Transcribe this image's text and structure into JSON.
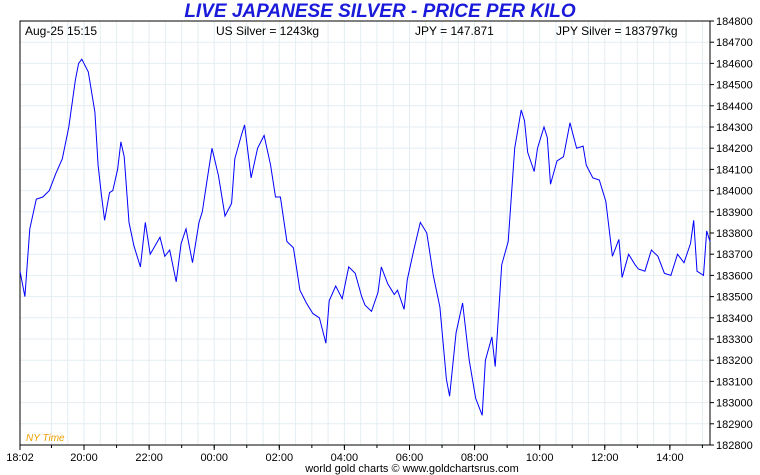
{
  "title": "LIVE JAPANESE SILVER - PRICE PER KILO",
  "header": {
    "timestamp": "Aug-25  15:15",
    "us_silver": "US Silver = 1243kg",
    "jpy_rate": "JPY = 147.871",
    "jpy_silver": "JPY Silver = 183797kg"
  },
  "timezone_label": "NY Time",
  "footer": "world gold charts © www.goldchartsrus.com",
  "colors": {
    "line": "#0000ff",
    "title": "#1a1adb",
    "grid": "#e4eef2",
    "timezone": "#f0a000"
  },
  "chart_data": {
    "type": "line",
    "title": "LIVE JAPANESE SILVER - PRICE PER KILO",
    "xlabel": "",
    "ylabel": "",
    "x_ticks": [
      "18:02",
      "20:00",
      "22:00",
      "00:00",
      "02:00",
      "04:00",
      "06:00",
      "08:00",
      "10:00",
      "12:00",
      "14:00"
    ],
    "x_tick_hours": [
      0,
      1.967,
      3.967,
      5.967,
      7.967,
      9.967,
      11.967,
      13.967,
      15.967,
      17.967,
      19.967
    ],
    "x_range_hours": [
      0,
      21.2
    ],
    "ylim": [
      182800,
      184800
    ],
    "y_ticks": [
      182800,
      182900,
      183000,
      183100,
      183200,
      183300,
      183400,
      183500,
      183600,
      183700,
      183800,
      183900,
      184000,
      184100,
      184200,
      184300,
      184400,
      184500,
      184600,
      184700,
      184800
    ],
    "grid": true,
    "series": [
      {
        "x_hours": [
          0,
          0.15,
          0.3,
          0.5,
          0.7,
          0.9,
          1.1,
          1.3,
          1.5,
          1.7,
          1.8,
          1.9,
          2.1,
          2.3,
          2.4,
          2.5,
          2.6,
          2.75,
          2.85,
          3.0,
          3.1,
          3.2,
          3.35,
          3.5,
          3.7,
          3.85,
          4.0,
          4.15,
          4.3,
          4.45,
          4.6,
          4.8,
          4.95,
          5.1,
          5.3,
          5.5,
          5.6,
          5.75,
          5.9,
          6.1,
          6.3,
          6.5,
          6.6,
          6.8,
          6.9,
          7.1,
          7.3,
          7.5,
          7.7,
          7.85,
          8.0,
          8.2,
          8.4,
          8.5,
          8.6,
          8.8,
          9.0,
          9.2,
          9.4,
          9.5,
          9.7,
          9.9,
          10.1,
          10.3,
          10.5,
          10.6,
          10.8,
          11.0,
          11.1,
          11.3,
          11.5,
          11.6,
          11.8,
          11.9,
          12.1,
          12.3,
          12.5,
          12.7,
          12.9,
          13.1,
          13.2,
          13.4,
          13.6,
          13.8,
          14.0,
          14.2,
          14.3,
          14.5,
          14.6,
          14.8,
          15.0,
          15.2,
          15.4,
          15.5,
          15.6,
          15.8,
          15.9,
          16.1,
          16.2,
          16.3,
          16.5,
          16.7,
          16.9,
          17.1,
          17.3,
          17.4,
          17.6,
          17.8,
          18.0,
          18.2,
          18.4,
          18.5,
          18.7,
          18.9,
          19.0,
          19.2,
          19.4,
          19.6,
          19.8,
          20.0,
          20.2,
          20.4,
          20.6,
          20.7,
          20.8,
          21.0,
          21.1,
          21.2
        ],
        "values": [
          183620,
          183500,
          183820,
          183960,
          183970,
          184000,
          184080,
          184150,
          184300,
          184520,
          184600,
          184620,
          184560,
          184370,
          184120,
          183980,
          183860,
          183990,
          184000,
          184100,
          184230,
          184160,
          183850,
          183740,
          183640,
          183850,
          183700,
          183740,
          183780,
          183690,
          183720,
          183570,
          183750,
          183820,
          183660,
          183850,
          183900,
          184050,
          184200,
          184070,
          183880,
          183940,
          184150,
          184260,
          184310,
          184060,
          184200,
          184260,
          184120,
          183970,
          183970,
          183760,
          183730,
          183630,
          183530,
          183470,
          183420,
          183400,
          183280,
          183480,
          183550,
          183490,
          183640,
          183610,
          183500,
          183460,
          183430,
          183520,
          183640,
          183560,
          183510,
          183530,
          183440,
          183580,
          183720,
          183850,
          183800,
          183600,
          183450,
          183110,
          183030,
          183330,
          183470,
          183200,
          183020,
          182940,
          183200,
          183310,
          183170,
          183650,
          183760,
          184200,
          184380,
          184330,
          184180,
          184090,
          184200,
          184300,
          184250,
          184030,
          184140,
          184160,
          184320,
          184200,
          184210,
          184120,
          184060,
          184050,
          183950,
          183690,
          183770,
          183590,
          183700,
          183650,
          183630,
          183620,
          183720,
          183690,
          183610,
          183600,
          183700,
          183660,
          183750,
          183860,
          183620,
          183600,
          183810,
          183760
        ]
      }
    ]
  }
}
